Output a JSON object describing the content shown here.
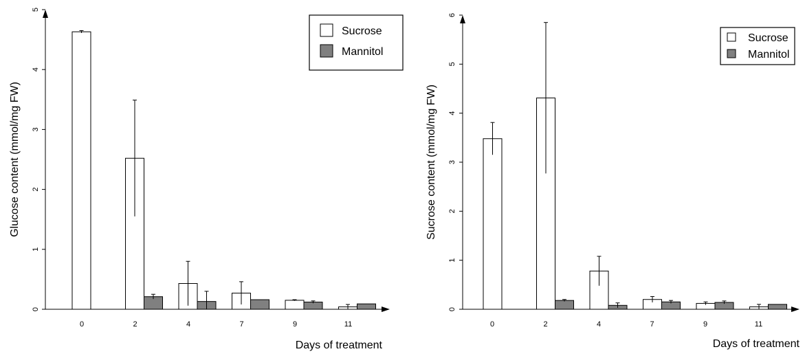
{
  "chart_data": [
    {
      "type": "bar",
      "title": "",
      "xlabel": "Days of treatment",
      "ylabel": "Glucose content (mmol/mg FW)",
      "categories": [
        "0",
        "2",
        "4",
        "7",
        "9",
        "11"
      ],
      "ylim": [
        0,
        5
      ],
      "yticks": [
        "0",
        "1",
        "2",
        "3",
        "4",
        "5"
      ],
      "grid": false,
      "legend_position": "top-right",
      "series": [
        {
          "name": "Sucrose",
          "color": "#ffffff",
          "values": [
            4.63,
            2.52,
            0.43,
            0.27,
            0.15,
            0.04
          ],
          "errors": [
            0.02,
            0.97,
            0.37,
            0.19,
            0.01,
            0.04
          ]
        },
        {
          "name": "Mannitol",
          "color": "#808080",
          "values": [
            0.0,
            0.21,
            0.13,
            0.16,
            0.12,
            0.09
          ],
          "errors": [
            0.0,
            0.04,
            0.17,
            0.0,
            0.02,
            0.0
          ]
        }
      ]
    },
    {
      "type": "bar",
      "title": "",
      "xlabel": "Days of treatment",
      "ylabel": "Sucrose content (mmol/mg FW)",
      "categories": [
        "0",
        "2",
        "4",
        "7",
        "9",
        "11"
      ],
      "ylim": [
        0,
        6
      ],
      "yticks": [
        "0",
        "1",
        "2",
        "3",
        "4",
        "5",
        "6"
      ],
      "grid": false,
      "legend_position": "top-right",
      "series": [
        {
          "name": "Sucrose",
          "color": "#ffffff",
          "values": [
            3.48,
            4.31,
            0.78,
            0.2,
            0.12,
            0.05
          ],
          "errors": [
            0.33,
            1.54,
            0.3,
            0.06,
            0.03,
            0.05
          ]
        },
        {
          "name": "Mannitol",
          "color": "#808080",
          "values": [
            0.0,
            0.18,
            0.08,
            0.15,
            0.14,
            0.1
          ],
          "errors": [
            0.0,
            0.02,
            0.05,
            0.03,
            0.03,
            0.0
          ]
        }
      ]
    }
  ]
}
